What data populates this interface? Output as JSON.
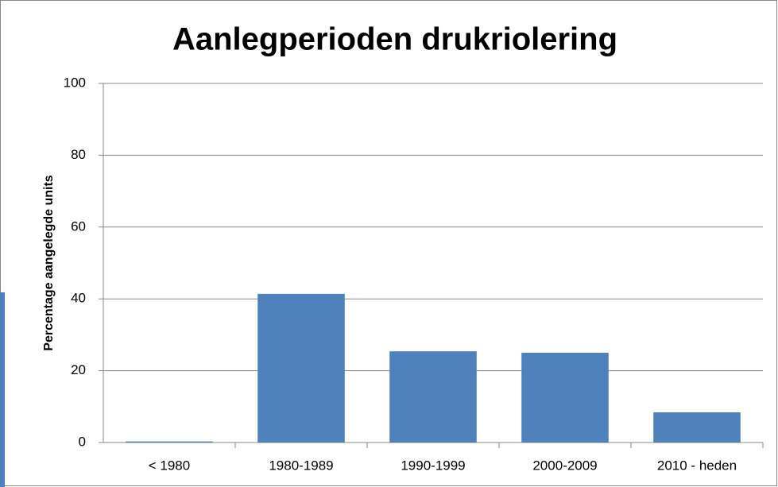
{
  "chart_data": {
    "type": "bar",
    "title": "Aanlegperioden drukriolering",
    "y_label": "Percentage aangelegde  units",
    "categories": [
      "< 1980",
      "1980-1989",
      "1990-1999",
      "2000-2009",
      "2010 - heden"
    ],
    "values": [
      0.3,
      41.4,
      25.4,
      25.0,
      8.4
    ],
    "color": "#4f81bd",
    "ylim": [
      0,
      100
    ],
    "yticks": [
      0,
      20,
      40,
      60,
      80,
      100
    ],
    "grid": true
  }
}
